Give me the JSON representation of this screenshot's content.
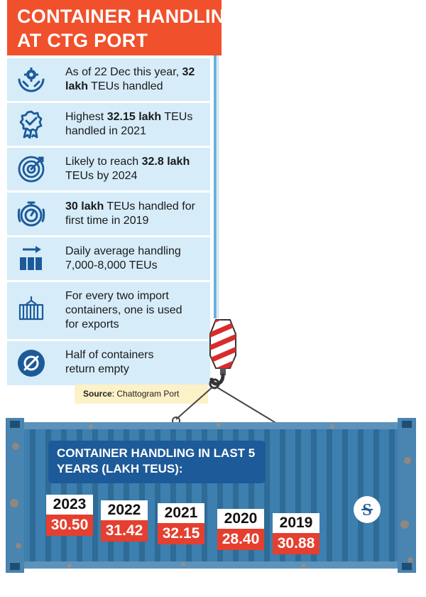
{
  "title": {
    "line1": "CONTAINER HANDLING",
    "line2": "AT CTG PORT"
  },
  "facts": [
    {
      "icon": "hands-holding-gear-icon",
      "pre": "As of 22 Dec this year, ",
      "bold": "32 lakh",
      "post": " TEUs handled"
    },
    {
      "icon": "award-ribbon-icon",
      "pre": "Highest ",
      "bold": "32.15 lakh",
      "post": " TEUs handled in 2021"
    },
    {
      "icon": "target-icon",
      "pre": "Likely to reach ",
      "bold": "32.8 lakh",
      "post": " TEUs by 2024"
    },
    {
      "icon": "stopwatch-icon",
      "pre": "",
      "bold": "30 lakh",
      "post": " TEUs handled for first time in 2019"
    },
    {
      "icon": "bar-arrow-icon",
      "pre": "Daily average handling 7,000-8,000 TEUs",
      "bold": "",
      "post": ""
    },
    {
      "icon": "cargo-container-icon",
      "pre": "For every two import containers, one is used for exports",
      "bold": "",
      "post": ""
    },
    {
      "icon": "empty-set-icon",
      "pre": "Half of containers return empty",
      "bold": "",
      "post": ""
    }
  ],
  "source": {
    "label": "Source",
    "text": ": Chattogram Port"
  },
  "panel": {
    "line1": "CONTAINER HANDLING IN LAST 5",
    "line2": "YEARS (LAKH TEUS):"
  },
  "chart_data": {
    "type": "table",
    "title": "CONTAINER HANDLING IN LAST 5 YEARS (LAKH TEUS):",
    "categories": [
      "2023",
      "2022",
      "2021",
      "2020",
      "2019"
    ],
    "values": [
      30.5,
      31.42,
      32.15,
      28.4,
      30.88
    ],
    "labels": [
      "30.50",
      "31.42",
      "32.15",
      "28.40",
      "30.88"
    ]
  },
  "logo_letter": "S",
  "colors": {
    "brand": "#f0502b",
    "panel": "#1d5a99",
    "value_bg": "#e43f2f",
    "fact_bg": "#d6ecf9",
    "icon": "#1d5a99"
  }
}
